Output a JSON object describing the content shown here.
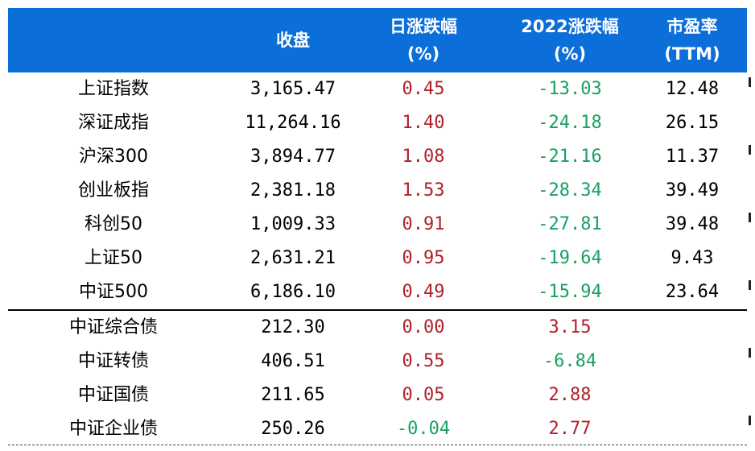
{
  "colors": {
    "header_bg": "#0c6ed8",
    "header_text": "#ffffff",
    "up": "#b0202a",
    "down": "#19a060",
    "neutral": "#000000"
  },
  "headers": [
    {
      "line1": "",
      "line2": ""
    },
    {
      "line1": "收盘",
      "line2": ""
    },
    {
      "line1": "日涨跌幅",
      "line2": "(%)"
    },
    {
      "line1": "2022涨跌幅",
      "line2": "(%)"
    },
    {
      "line1": "市盈率",
      "line2": "(TTM)"
    }
  ],
  "rows": [
    {
      "name": "上证指数",
      "close": "3,165.47",
      "daily": "0.45",
      "ytd": "-13.03",
      "pe": "12.48"
    },
    {
      "name": "深证成指",
      "close": "11,264.16",
      "daily": "1.40",
      "ytd": "-24.18",
      "pe": "26.15"
    },
    {
      "name": "沪深300",
      "close": "3,894.77",
      "daily": "1.08",
      "ytd": "-21.16",
      "pe": "11.37"
    },
    {
      "name": "创业板指",
      "close": "2,381.18",
      "daily": "1.53",
      "ytd": "-28.34",
      "pe": "39.49"
    },
    {
      "name": "科创50",
      "close": "1,009.33",
      "daily": "0.91",
      "ytd": "-27.81",
      "pe": "39.48"
    },
    {
      "name": "上证50",
      "close": "2,631.21",
      "daily": "0.95",
      "ytd": "-19.64",
      "pe": "9.43"
    },
    {
      "name": "中证500",
      "close": "6,186.10",
      "daily": "0.49",
      "ytd": "-15.94",
      "pe": "23.64"
    },
    {
      "name": "中证综合债",
      "close": "212.30",
      "daily": "0.00",
      "ytd": "3.15",
      "pe": ""
    },
    {
      "name": "中证转债",
      "close": "406.51",
      "daily": "0.55",
      "ytd": "-6.84",
      "pe": ""
    },
    {
      "name": "中证国债",
      "close": "211.65",
      "daily": "0.05",
      "ytd": "2.88",
      "pe": ""
    },
    {
      "name": "中证企业债",
      "close": "250.26",
      "daily": "-0.04",
      "ytd": "2.77",
      "pe": ""
    }
  ],
  "cell_colors": {
    "daily": [
      "up",
      "up",
      "up",
      "up",
      "up",
      "up",
      "up",
      "up",
      "up",
      "up",
      "down"
    ],
    "ytd": [
      "down",
      "down",
      "down",
      "down",
      "down",
      "down",
      "down",
      "up",
      "down",
      "up",
      "up"
    ]
  }
}
